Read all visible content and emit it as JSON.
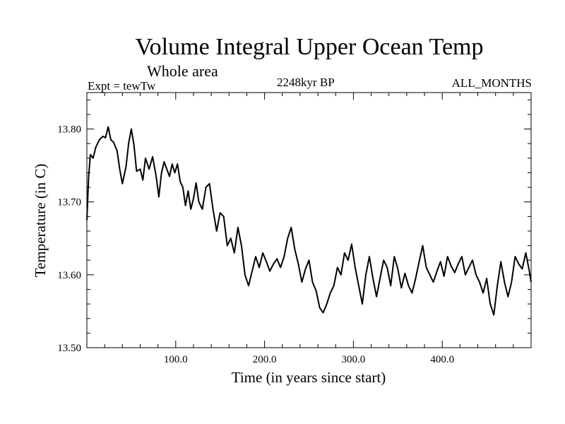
{
  "chart_data": {
    "type": "line",
    "title": "Volume Integral Upper Ocean Temp",
    "subtitle": "Whole area",
    "left_label": "Expt = tewTw",
    "center_label": "2248kyr BP",
    "right_label": "ALL_MONTHS",
    "xlabel": "Time (in years since start)",
    "ylabel": "Temperature (in C)",
    "xlim": [
      0,
      500
    ],
    "ylim": [
      13.5,
      13.85
    ],
    "xticks": [
      100,
      200,
      300,
      400
    ],
    "xtick_labels": [
      "100.0",
      "200.0",
      "300.0",
      "400.0"
    ],
    "yticks": [
      13.5,
      13.6,
      13.7,
      13.8
    ],
    "ytick_labels": [
      "13.50",
      "13.60",
      "13.70",
      "13.80"
    ],
    "grid": false,
    "line_color": "#000000",
    "series": [
      {
        "name": "Temperature",
        "x": [
          0,
          2,
          4,
          7,
          10,
          14,
          18,
          21,
          24,
          27,
          30,
          34,
          37,
          40,
          44,
          47,
          50,
          53,
          56,
          60,
          63,
          66,
          70,
          74,
          78,
          81,
          84,
          87,
          90,
          93,
          96,
          99,
          102,
          105,
          108,
          111,
          114,
          117,
          120,
          123,
          126,
          130,
          134,
          138,
          142,
          146,
          150,
          154,
          158,
          162,
          166,
          170,
          174,
          178,
          182,
          186,
          190,
          194,
          198,
          202,
          206,
          210,
          214,
          218,
          222,
          226,
          230,
          234,
          238,
          242,
          246,
          250,
          254,
          258,
          262,
          266,
          270,
          274,
          278,
          282,
          286,
          290,
          294,
          298,
          302,
          306,
          310,
          314,
          318,
          322,
          326,
          330,
          334,
          338,
          342,
          346,
          350,
          354,
          358,
          362,
          366,
          370,
          374,
          378,
          382,
          386,
          390,
          394,
          398,
          402,
          406,
          410,
          414,
          418,
          422,
          426,
          430,
          434,
          438,
          442,
          446,
          450,
          454,
          458,
          462,
          466,
          470,
          474,
          478,
          482,
          486,
          490,
          494,
          498,
          500
        ],
        "values": [
          13.675,
          13.735,
          13.765,
          13.76,
          13.775,
          13.785,
          13.79,
          13.788,
          13.803,
          13.785,
          13.782,
          13.77,
          13.745,
          13.725,
          13.748,
          13.78,
          13.8,
          13.778,
          13.742,
          13.745,
          13.73,
          13.76,
          13.745,
          13.762,
          13.735,
          13.707,
          13.74,
          13.755,
          13.745,
          13.735,
          13.752,
          13.74,
          13.752,
          13.728,
          13.72,
          13.695,
          13.715,
          13.69,
          13.705,
          13.726,
          13.7,
          13.69,
          13.72,
          13.725,
          13.69,
          13.66,
          13.685,
          13.68,
          13.64,
          13.65,
          13.63,
          13.665,
          13.64,
          13.6,
          13.585,
          13.605,
          13.625,
          13.61,
          13.63,
          13.618,
          13.605,
          13.615,
          13.622,
          13.61,
          13.625,
          13.65,
          13.665,
          13.635,
          13.615,
          13.59,
          13.608,
          13.62,
          13.59,
          13.578,
          13.555,
          13.548,
          13.56,
          13.575,
          13.585,
          13.61,
          13.6,
          13.63,
          13.62,
          13.642,
          13.61,
          13.585,
          13.56,
          13.6,
          13.625,
          13.595,
          13.57,
          13.595,
          13.62,
          13.61,
          13.585,
          13.625,
          13.608,
          13.582,
          13.602,
          13.585,
          13.575,
          13.595,
          13.618,
          13.64,
          13.61,
          13.6,
          13.59,
          13.605,
          13.618,
          13.598,
          13.625,
          13.612,
          13.603,
          13.615,
          13.625,
          13.6,
          13.61,
          13.62,
          13.6,
          13.59,
          13.575,
          13.595,
          13.56,
          13.545,
          13.585,
          13.618,
          13.59,
          13.57,
          13.59,
          13.625,
          13.615,
          13.608,
          13.63,
          13.605,
          13.59
        ]
      }
    ]
  }
}
